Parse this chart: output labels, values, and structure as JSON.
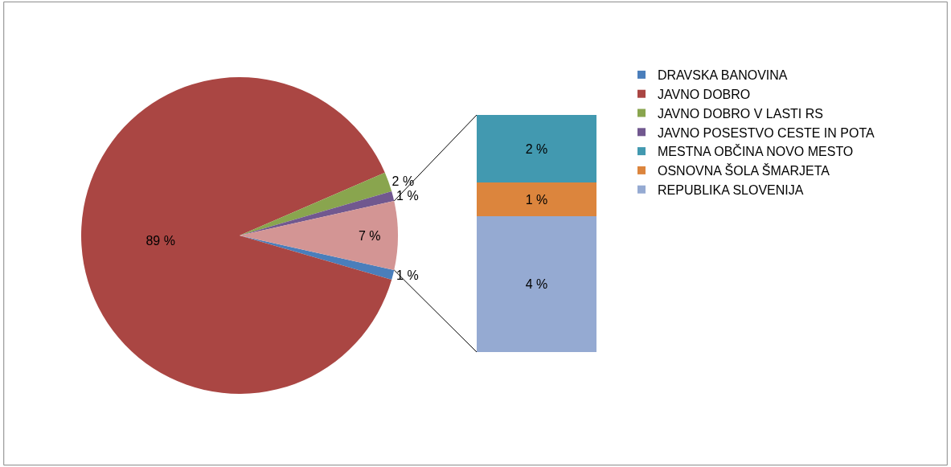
{
  "chart_data": [
    {
      "type": "pie",
      "categories": [
        "DRAVSKA BANOVINA",
        "JAVNO DOBRO",
        "JAVNO DOBRO V LASTI RS",
        "JAVNO POSESTVO CESTE IN POTA",
        null
      ],
      "values": [
        1,
        89,
        2,
        1,
        7
      ],
      "colors": [
        "#4a7ebb",
        "#aa4643",
        "#89a54e",
        "#71588f",
        "#d39594"
      ],
      "value_labels": [
        "1 %",
        "89 %",
        "2 %",
        "1 %",
        "7 %"
      ],
      "legend": "right"
    },
    {
      "type": "bar",
      "stacked": true,
      "categories": [
        null
      ],
      "series": [
        {
          "name": "REPUBLIKA SLOVENIJA",
          "color": "#95aad2",
          "values": [
            4
          ],
          "value_labels": [
            "4 %"
          ]
        },
        {
          "name": "OSNOVNA ŠOLA ŠMARJETA",
          "color": "#dc853d",
          "values": [
            1
          ],
          "value_labels": [
            "1 %"
          ]
        },
        {
          "name": "MESTNA OBČINA NOVO MESTO",
          "color": "#4299b0",
          "values": [
            2
          ],
          "value_labels": [
            "2 %"
          ]
        }
      ],
      "legend": "right"
    }
  ]
}
